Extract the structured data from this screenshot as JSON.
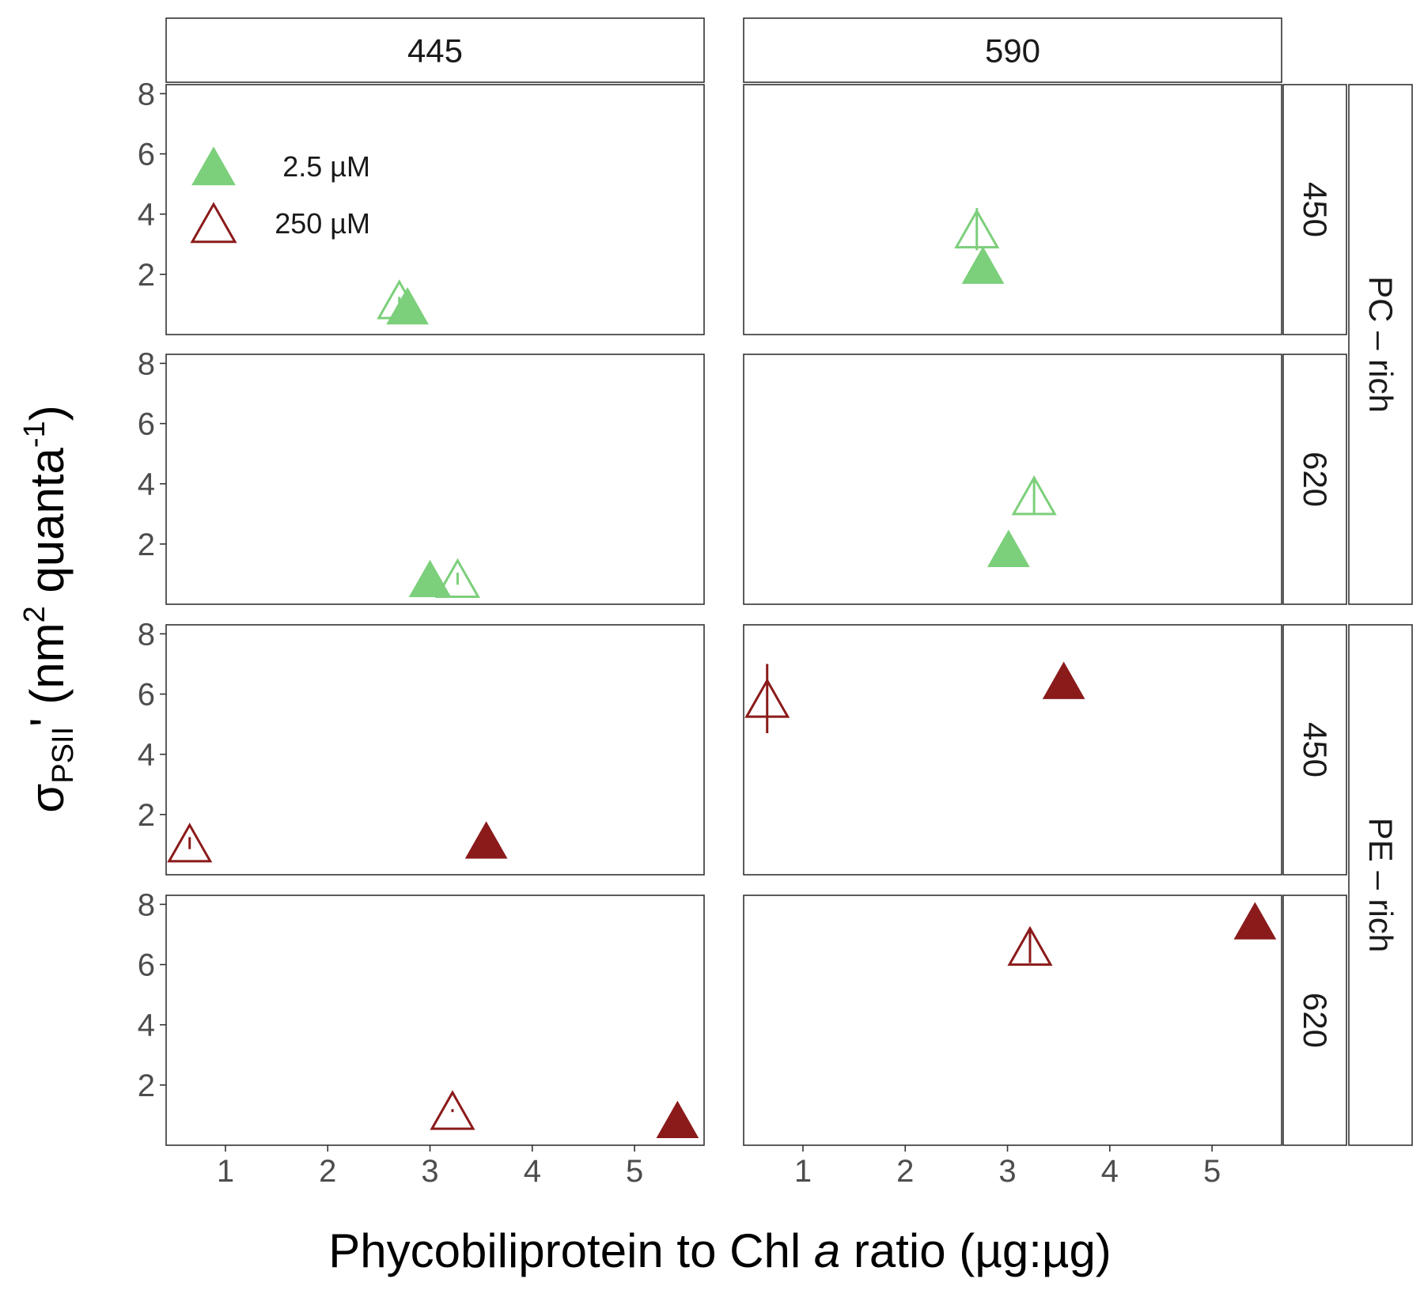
{
  "chart_data": {
    "type": "scatter",
    "xlabel_parts": [
      "Phycobiliprotein to Chl ",
      "a",
      " ratio (µg:µg)"
    ],
    "ylabel_parts": {
      "sigma": "σ",
      "sub": "PSII",
      "prime_unit": "' (nm",
      "sup1": "2",
      "mid": " quanta",
      "sup2": "-1",
      "end": ")"
    },
    "x_ticks": [
      "1",
      "2",
      "3",
      "4",
      "5"
    ],
    "x_tick_values": [
      1,
      2,
      3,
      4,
      5
    ],
    "y_ticks": [
      "2",
      "4",
      "6",
      "8"
    ],
    "y_tick_values": [
      2,
      4,
      6,
      8
    ],
    "xlim": [
      0.42,
      5.68
    ],
    "ylim": [
      0.0,
      8.3
    ],
    "column_strips": [
      "445",
      "590"
    ],
    "row_strips_inner": [
      "450",
      "620",
      "450",
      "620"
    ],
    "row_strips_outer": [
      "PC – rich",
      "PE – rich"
    ],
    "legend": {
      "items": [
        {
          "label": "2.5 µM",
          "filled": true
        },
        {
          "label": "250 µM",
          "filled": false
        }
      ]
    },
    "colors": {
      "pc_rich": "#7ccf7b",
      "pe_rich": "#8b1a1a",
      "legend_filled": "#7ccf7b",
      "legend_open": "#8b1a1a"
    },
    "panels": [
      {
        "col": "445",
        "row": "450",
        "group": "PC – rich",
        "points": [
          {
            "x": 2.7,
            "y": 1.15,
            "err": 0.1,
            "conc": "250 µM"
          },
          {
            "x": 2.78,
            "y": 0.95,
            "err": 0.05,
            "conc": "2.5 µM"
          }
        ]
      },
      {
        "col": "590",
        "row": "450",
        "group": "PC – rich",
        "points": [
          {
            "x": 2.7,
            "y": 3.5,
            "err": 0.7,
            "conc": "250 µM"
          },
          {
            "x": 2.76,
            "y": 2.3,
            "err": 0.2,
            "conc": "2.5 µM"
          }
        ]
      },
      {
        "col": "445",
        "row": "620",
        "group": "PC – rich",
        "points": [
          {
            "x": 3.0,
            "y": 0.85,
            "err": 0.05,
            "conc": "2.5 µM"
          },
          {
            "x": 3.27,
            "y": 0.85,
            "err": 0.2,
            "conc": "250 µM"
          }
        ]
      },
      {
        "col": "590",
        "row": "620",
        "group": "PC – rich",
        "points": [
          {
            "x": 3.26,
            "y": 3.6,
            "err": 0.6,
            "conc": "250 µM"
          },
          {
            "x": 3.01,
            "y": 1.85,
            "err": 0.1,
            "conc": "2.5 µM"
          }
        ]
      },
      {
        "col": "445",
        "row": "450",
        "group": "PE – rich",
        "points": [
          {
            "x": 0.65,
            "y": 1.05,
            "err": 0.2,
            "conc": "250 µM"
          },
          {
            "x": 3.55,
            "y": 1.15,
            "err": 0.05,
            "conc": "2.5 µM"
          }
        ]
      },
      {
        "col": "590",
        "row": "450",
        "group": "PE – rich",
        "points": [
          {
            "x": 0.65,
            "y": 5.85,
            "err": 1.15,
            "conc": "250 µM"
          },
          {
            "x": 3.55,
            "y": 6.45,
            "err": 0.3,
            "conc": "2.5 µM"
          }
        ]
      },
      {
        "col": "445",
        "row": "620",
        "group": "PE – rich",
        "points": [
          {
            "x": 3.22,
            "y": 1.15,
            "err": 0.05,
            "conc": "250 µM"
          },
          {
            "x": 5.42,
            "y": 0.85,
            "err": 0.05,
            "conc": "2.5 µM"
          }
        ]
      },
      {
        "col": "590",
        "row": "620",
        "group": "PE – rich",
        "points": [
          {
            "x": 3.22,
            "y": 6.6,
            "err": 0.55,
            "conc": "250 µM"
          },
          {
            "x": 5.42,
            "y": 7.45,
            "err": 0.35,
            "conc": "2.5 µM"
          }
        ]
      }
    ]
  }
}
